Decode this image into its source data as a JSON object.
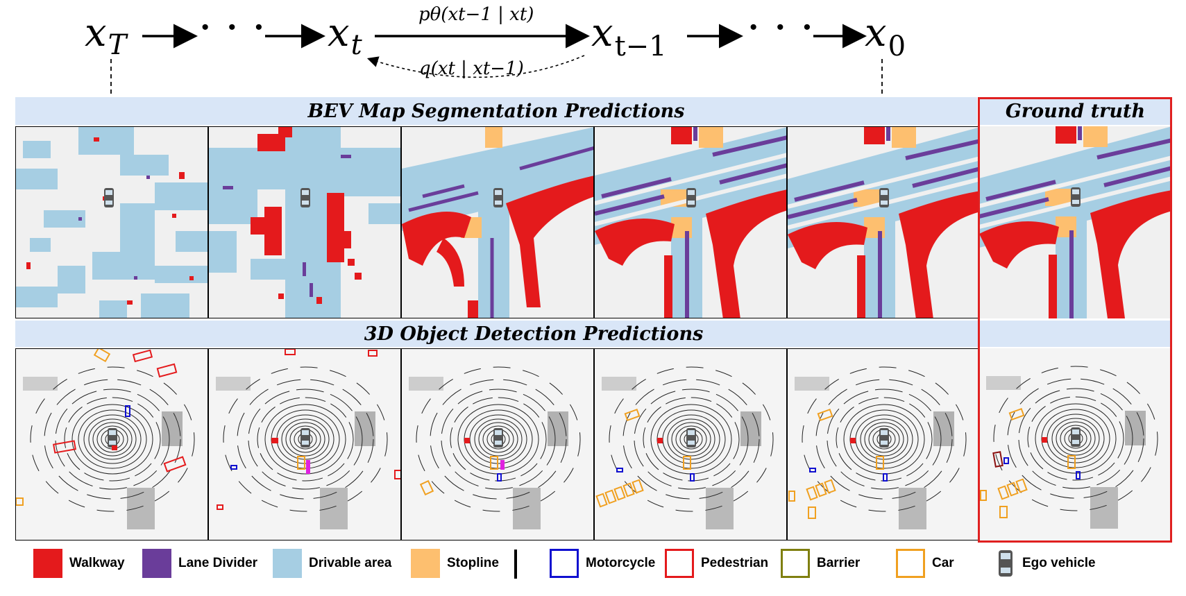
{
  "diffusion_chain": {
    "x_T": {
      "base": "x",
      "sub": "T"
    },
    "x_t": {
      "base": "x",
      "sub": "t"
    },
    "x_t_minus_1": {
      "base": "x",
      "sub": "t−1"
    },
    "x_0": {
      "base": "x",
      "sub": "0"
    },
    "ellipsis": "· · ·",
    "reverse_label": "pθ(xt−1 | xt)",
    "forward_label": "q(xt | xt−1)"
  },
  "sections": {
    "bev_title": "BEV Map Segmentation Predictions",
    "detection_title": "3D Object Detection Predictions",
    "ground_truth_title": "Ground truth"
  },
  "legend": {
    "map_classes": [
      {
        "name": "walkway",
        "label": "Walkway",
        "color": "#e41a1c"
      },
      {
        "name": "lane-divider",
        "label": "Lane Divider",
        "color": "#6a3d9a"
      },
      {
        "name": "drivable-area",
        "label": "Drivable area",
        "color": "#a6cee3"
      },
      {
        "name": "stopline",
        "label": "Stopline",
        "color": "#fdbf6f"
      }
    ],
    "object_classes": [
      {
        "name": "motorcycle",
        "label": "Motorcycle",
        "color": "#1010d0"
      },
      {
        "name": "pedestrian",
        "label": "Pedestrian",
        "color": "#e41a1c"
      },
      {
        "name": "barrier",
        "label": "Barrier",
        "color": "#7f7f10"
      },
      {
        "name": "car",
        "label": "Car",
        "color": "#f0a020"
      }
    ],
    "ego": {
      "label": "Ego vehicle"
    }
  },
  "colors": {
    "band": "#d9e6f7",
    "map_background": "#f0f0f0",
    "ground_truth_frame": "#e02020"
  }
}
